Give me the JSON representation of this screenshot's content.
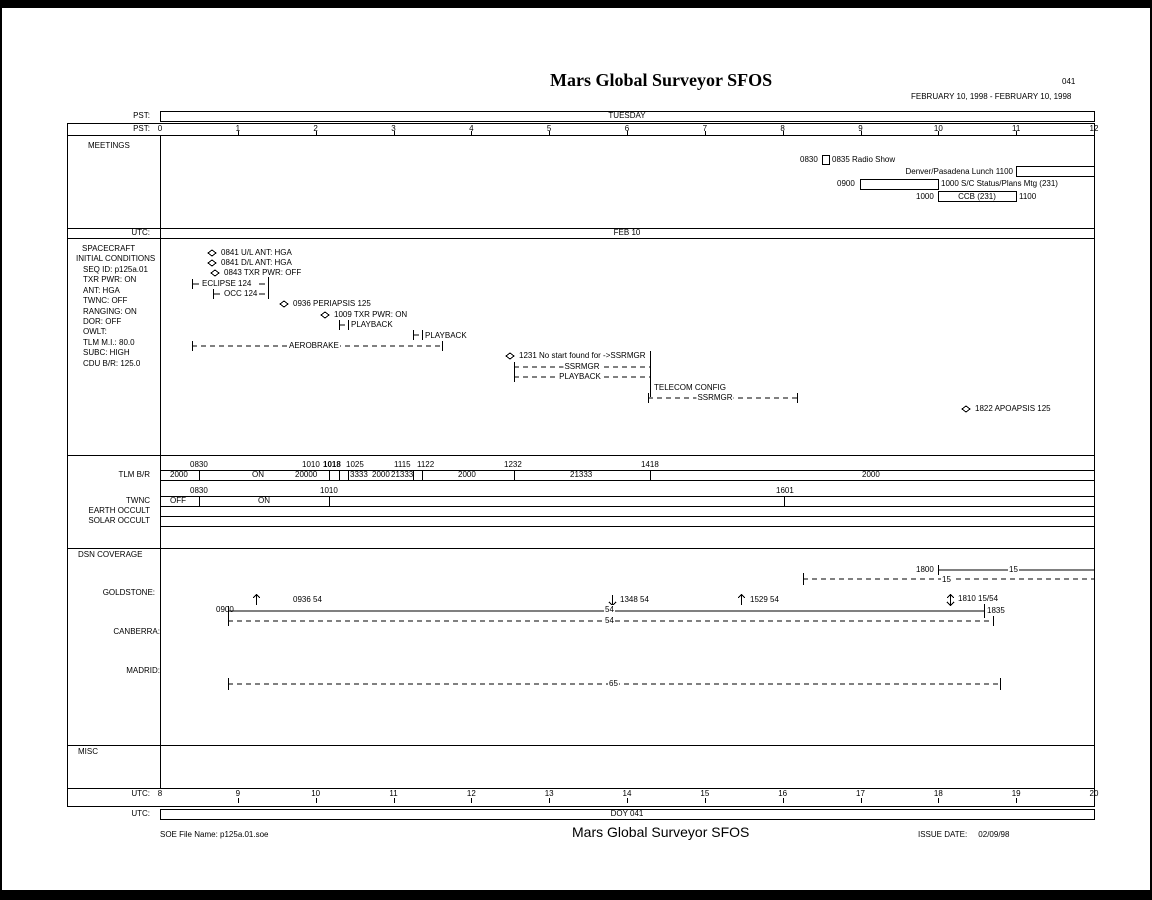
{
  "header": {
    "title": "Mars Global Surveyor SFOS",
    "doy": "041",
    "date_range": "FEBRUARY 10, 1998 - FEBRUARY 10, 1998"
  },
  "rows": {
    "pst_label": "PST:",
    "pst_day": "TUESDAY",
    "utc_label": "UTC:",
    "utc_date": "FEB 10",
    "doy": "DOY 041"
  },
  "pst_ticks": [
    0,
    1,
    2,
    3,
    4,
    5,
    6,
    7,
    8,
    9,
    10,
    11,
    12
  ],
  "utc_ticks": [
    8,
    9,
    10,
    11,
    12,
    13,
    14,
    15,
    16,
    17,
    18,
    19,
    20
  ],
  "meetings": {
    "label": "MEETINGS",
    "radio_start": "0830",
    "radio": "0835  Radio Show",
    "lunch": "Denver/Pasadena Lunch  1100",
    "sc_start": "0900",
    "sc": "1000  S/C Status/Plans Mtg (231)",
    "ccb_start": "1000",
    "ccb": "CCB (231)",
    "ccb_end": "1100"
  },
  "spacecraft": {
    "label1": "SPACECRAFT",
    "label2": "INITIAL CONDITIONS",
    "conditions": [
      "SEQ ID: p125a.01",
      "TXR PWR: ON",
      "ANT: HGA",
      "TWNC: OFF",
      "RANGING: ON",
      "DOR: OFF",
      "OWLT:",
      "TLM M.I.: 80.0",
      "SUBC: HIGH",
      "CDU B/R: 125.0"
    ],
    "events": {
      "ul": "0841  U/L ANT: HGA",
      "dl": "0841  D/L ANT: HGA",
      "txr_off": "0843  TXR PWR: OFF",
      "eclipse": "ECLIPSE 124",
      "occ": "OCC 124",
      "periapsis": "0936  PERIAPSIS 125",
      "txr_on": "1009  TXR PWR: ON",
      "playback1": "PLAYBACK",
      "playback2": "PLAYBACK",
      "aerobrake": "AEROBRAKE",
      "nostart": "1231  No start found for ->SSRMGR",
      "ssrmgr1": "SSRMGR",
      "playback3": "PLAYBACK",
      "telecom": "TELECOM CONFIG",
      "ssrmgr2": "SSRMGR",
      "apoapsis": "1822  APOAPSIS 125"
    }
  },
  "tlm": {
    "label": "TLM B/R",
    "times": [
      "0830",
      "1010",
      "1018",
      "1025",
      "1115",
      "1122",
      "1232",
      "1418"
    ],
    "values": [
      "2000",
      "ON",
      "20000",
      "3333",
      "2000",
      "21333",
      "2000",
      "21333",
      "2000"
    ],
    "twnc_label": "TWNC",
    "twnc_times": [
      "0830",
      "1010",
      "1601"
    ],
    "twnc_values": [
      "OFF",
      "ON"
    ],
    "earth": "EARTH OCCULT",
    "solar": "SOLAR OCCULT"
  },
  "dsn": {
    "label": "DSN COVERAGE",
    "goldstone": "GOLDSTONE:",
    "canberra": "CANBERRA:",
    "madrid": "MADRID:",
    "t1800": "1800",
    "v15a": "15",
    "v15b": "15",
    "a1": "0936  54",
    "a2": "1348  54",
    "a3": "1529  54",
    "a4": "1810  15/54",
    "t0900": "0900",
    "v54a": "54",
    "t1835": "1835",
    "v54b": "54",
    "v65": "65"
  },
  "misc": {
    "label": "MISC"
  },
  "footer": {
    "file": "SOE File Name: p125a.01.soe",
    "title": "Mars Global Surveyor SFOS",
    "issue": "ISSUE DATE:     02/09/98"
  }
}
